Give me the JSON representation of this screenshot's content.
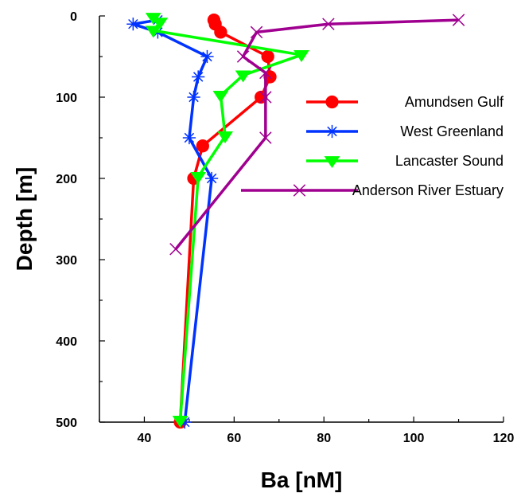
{
  "chart_data": {
    "type": "line",
    "xlabel": "Ba [nM]",
    "ylabel": "Depth [m]",
    "xlim": [
      30,
      120
    ],
    "ylim": [
      0,
      500
    ],
    "y_inverted": true,
    "x_axis_position": "top-hidden-labels-bottom",
    "xticks": [
      40,
      60,
      80,
      100,
      120
    ],
    "yticks": [
      0,
      100,
      200,
      300,
      400,
      500
    ],
    "grid": false,
    "legend_position": "right",
    "series": [
      {
        "name": "Amundsen Gulf",
        "color": "#ff0000",
        "marker": "circle",
        "points": [
          [
            55.5,
            5
          ],
          [
            55.8,
            10
          ],
          [
            57,
            20
          ],
          [
            67.5,
            50
          ],
          [
            68,
            75
          ],
          [
            66,
            100
          ],
          [
            53,
            160
          ],
          [
            51,
            200
          ],
          [
            48,
            500
          ]
        ]
      },
      {
        "name": "West Greenland",
        "color": "#0033ff",
        "marker": "asterisk",
        "points": [
          [
            43,
            5
          ],
          [
            37.5,
            10
          ],
          [
            43,
            20
          ],
          [
            54,
            50
          ],
          [
            52,
            75
          ],
          [
            51,
            100
          ],
          [
            50,
            150
          ],
          [
            55,
            200
          ],
          [
            49,
            500
          ]
        ]
      },
      {
        "name": "Lancaster Sound",
        "color": "#00ff00",
        "marker": "triangle-down",
        "points": [
          [
            42,
            2
          ],
          [
            43.5,
            8
          ],
          [
            42,
            18
          ],
          [
            75,
            48
          ],
          [
            62,
            73
          ],
          [
            57,
            98
          ],
          [
            58,
            148
          ],
          [
            52,
            198
          ],
          [
            48,
            498
          ]
        ]
      },
      {
        "name": "Anderson River Estuary",
        "color": "#a00090",
        "marker": "x",
        "points": [
          [
            110,
            5
          ],
          [
            81,
            10
          ],
          [
            65,
            20
          ],
          [
            62,
            50
          ],
          [
            67,
            70
          ],
          [
            67,
            100
          ],
          [
            67,
            150
          ],
          [
            47,
            287
          ]
        ]
      }
    ]
  }
}
